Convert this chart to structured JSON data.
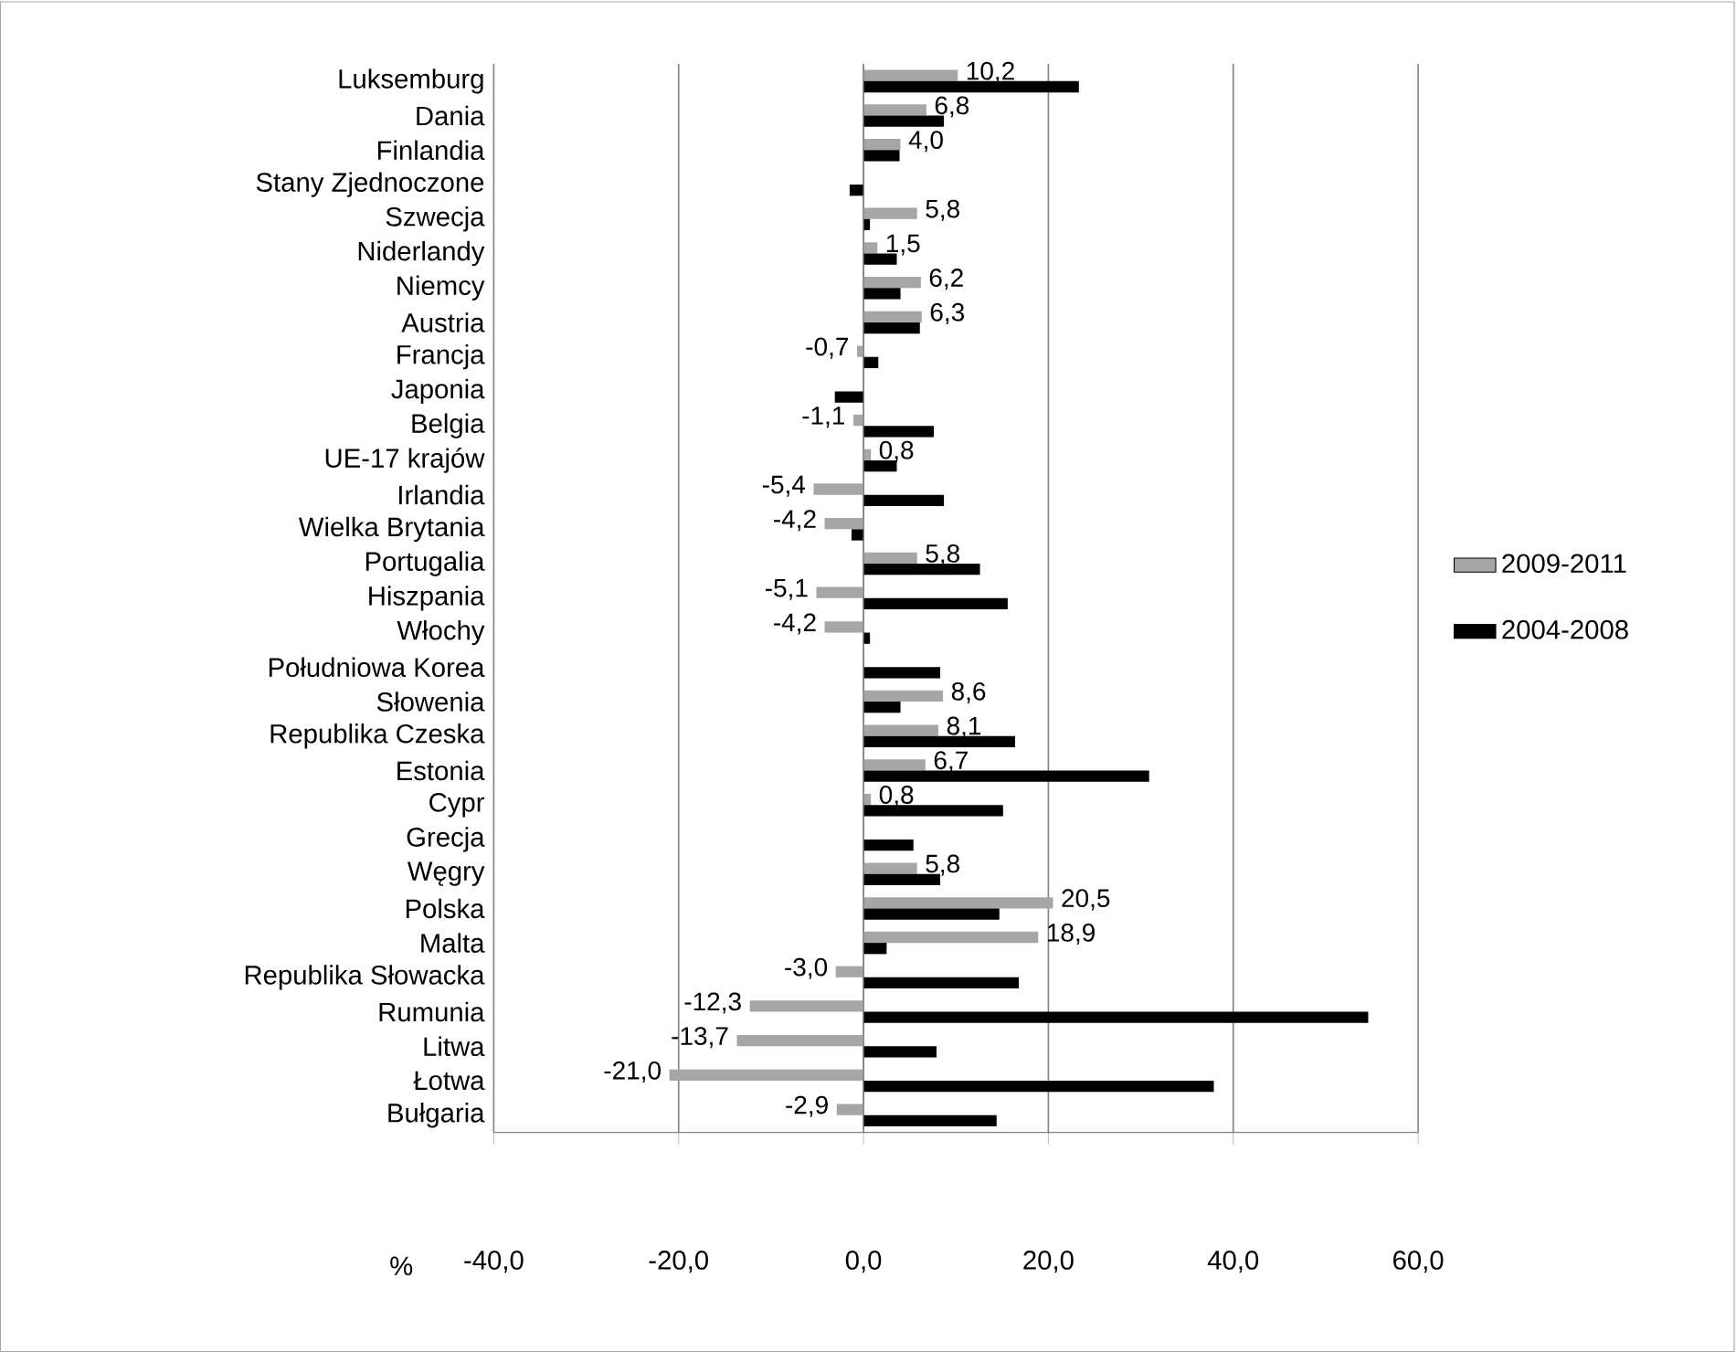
{
  "chart_data": {
    "type": "bar",
    "orientation": "horizontal",
    "xlabel": "%",
    "categories": [
      "Luksemburg",
      "Dania",
      "Finlandia",
      "Stany Zjednoczone",
      "Szwecja",
      "Niderlandy",
      "Niemcy",
      "Austria",
      "Francja",
      "Japonia",
      "Belgia",
      "UE-17 krajów",
      "Irlandia",
      "Wielka Brytania",
      "Portugalia",
      "Hiszpania",
      "Włochy",
      "Południowa Korea",
      "Słowenia",
      "Republika Czeska",
      "Estonia",
      "Cypr",
      "Grecja",
      "Węgry",
      "Polska",
      "Malta",
      "Republika Słowacka",
      "Rumunia",
      "Litwa",
      "Łotwa",
      "Bułgaria"
    ],
    "series": [
      {
        "name": "2009-2011",
        "color": "#a6a6a6",
        "values": [
          10.2,
          6.8,
          4.0,
          null,
          5.8,
          1.5,
          6.2,
          6.3,
          -0.7,
          null,
          -1.1,
          0.8,
          -5.4,
          -4.2,
          5.8,
          -5.1,
          -4.2,
          null,
          8.6,
          8.1,
          6.7,
          0.8,
          null,
          5.8,
          20.5,
          18.9,
          -3.0,
          -12.3,
          -13.7,
          -21.0,
          -2.9
        ],
        "value_labels": [
          "10,2",
          "6,8",
          "4,0",
          null,
          "5,8",
          "1,5",
          "6,2",
          "6,3",
          "-0,7",
          null,
          "-1,1",
          "0,8",
          "-5,4",
          "-4,2",
          "5,8",
          "-5,1",
          "-4,2",
          null,
          "8,6",
          "8,1",
          "6,7",
          "0,8",
          null,
          "5,8",
          "20,5",
          "18,9",
          "-3,0",
          "-12,3",
          "-13,7",
          "-21,0",
          "-2,9"
        ]
      },
      {
        "name": "2004-2008",
        "color": "#000000",
        "values": [
          23.3,
          8.7,
          3.9,
          -1.5,
          0.7,
          3.6,
          4.0,
          6.1,
          1.6,
          -3.1,
          7.6,
          3.6,
          8.7,
          -1.3,
          12.6,
          15.6,
          0.7,
          8.3,
          4.0,
          16.4,
          30.9,
          15.1,
          5.4,
          8.3,
          14.7,
          2.5,
          16.8,
          54.6,
          7.9,
          37.9,
          14.4
        ]
      }
    ],
    "xlim": [
      -40,
      60
    ],
    "xticks": [
      {
        "value": -40,
        "label": "-40,0"
      },
      {
        "value": -20,
        "label": "-20,0"
      },
      {
        "value": 0,
        "label": "0,0"
      },
      {
        "value": 20,
        "label": "20,0"
      },
      {
        "value": 40,
        "label": "40,0"
      },
      {
        "value": 60,
        "label": "60,0"
      }
    ],
    "grid": "x",
    "legend": "right"
  }
}
